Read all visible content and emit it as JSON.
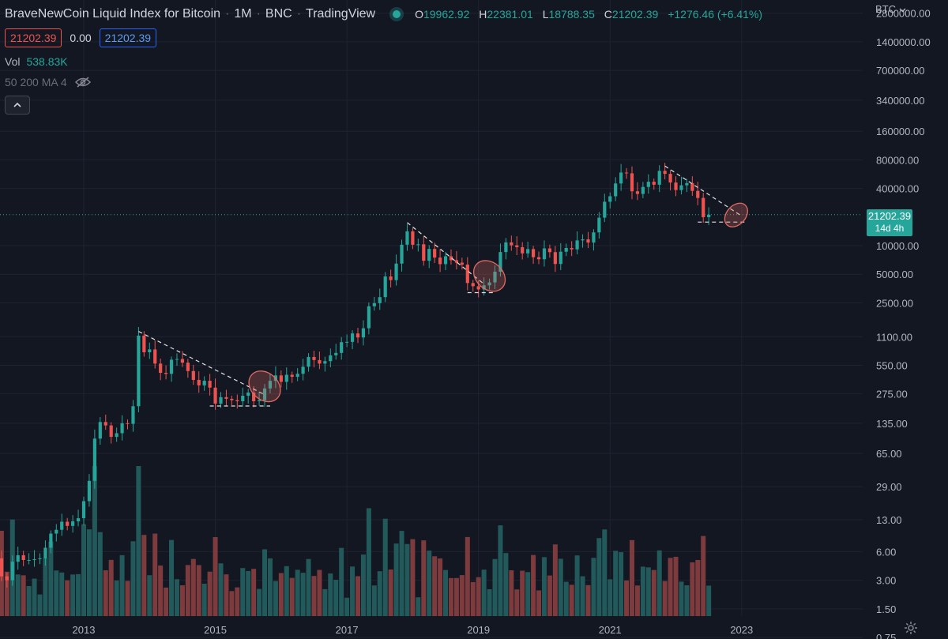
{
  "header": {
    "symbol_name": "BraveNewCoin Liquid Index for Bitcoin",
    "interval": "1M",
    "exchange": "BNC",
    "source": "TradingView",
    "ohlc": {
      "open_key": "O",
      "open": "19962.92",
      "high_key": "H",
      "high": "22381.01",
      "low_key": "L",
      "low": "18788.35",
      "close_key": "C",
      "close": "21202.39",
      "change": "+1276.46 (+6.41%)"
    }
  },
  "price_row": {
    "sell": "21202.39",
    "spread": "0.00",
    "buy": "21202.39"
  },
  "volume": {
    "label": "Vol",
    "value": "538.83K"
  },
  "indicator": {
    "label": "50 200 MA 4"
  },
  "currency": {
    "label": "BTC"
  },
  "last_price": {
    "value": "21202.39",
    "countdown": "14d 4h"
  },
  "colors": {
    "background": "#131722",
    "up": "#26a69a",
    "down": "#ef5350",
    "volume_up": "#225a5b",
    "volume_down": "#7d3b3d",
    "grid": "#1f2330",
    "annotation": "#e06a64",
    "trendline": "#e0e0e0"
  },
  "icons": {
    "live": "live-dot-icon",
    "hide": "eye-off-icon",
    "collapse": "chevron-up-icon",
    "settings": "gear-icon",
    "dropdown": "chevron-down-icon"
  },
  "chart_data": {
    "type": "candlestick",
    "title": "BraveNewCoin Liquid Index for Bitcoin",
    "interval": "1M",
    "yscale": "log",
    "ylim": [
      0.7,
      3200000
    ],
    "xlim": [
      "2011-08",
      "2024-11"
    ],
    "y_tick_labels": [
      "2800000.00",
      "1400000.00",
      "700000.00",
      "340000.00",
      "160000.00",
      "80000.00",
      "40000.00",
      "21202.39",
      "10000.00",
      "5000.00",
      "2500.00",
      "1100.00",
      "550.00",
      "275.00",
      "135.00",
      "65.00",
      "29.00",
      "13.00",
      "6.00",
      "3.00",
      "1.50",
      "0.75"
    ],
    "x_tick_labels": [
      "2013",
      "2015",
      "2017",
      "2019",
      "2021",
      "2023"
    ],
    "grid": true,
    "monthly_close": [
      [
        "2011-08",
        8.2
      ],
      [
        "2011-09",
        5.1
      ],
      [
        "2011-10",
        3.3
      ],
      [
        "2011-11",
        3.0
      ],
      [
        "2011-12",
        4.7
      ],
      [
        "2012-01",
        5.5
      ],
      [
        "2012-02",
        4.9
      ],
      [
        "2012-03",
        4.9
      ],
      [
        "2012-04",
        5.0
      ],
      [
        "2012-05",
        5.1
      ],
      [
        "2012-06",
        6.6
      ],
      [
        "2012-07",
        9.3
      ],
      [
        "2012-08",
        10.2
      ],
      [
        "2012-09",
        12.4
      ],
      [
        "2012-10",
        11.2
      ],
      [
        "2012-11",
        12.5
      ],
      [
        "2012-12",
        13.5
      ],
      [
        "2013-01",
        20.4
      ],
      [
        "2013-02",
        33.4
      ],
      [
        "2013-03",
        93.0
      ],
      [
        "2013-04",
        139
      ],
      [
        "2013-05",
        128
      ],
      [
        "2013-06",
        97
      ],
      [
        "2013-07",
        106
      ],
      [
        "2013-08",
        135
      ],
      [
        "2013-09",
        133
      ],
      [
        "2013-10",
        204
      ],
      [
        "2013-11",
        1130
      ],
      [
        "2013-12",
        754
      ],
      [
        "2014-01",
        808
      ],
      [
        "2014-02",
        573
      ],
      [
        "2014-03",
        458
      ],
      [
        "2014-04",
        447
      ],
      [
        "2014-05",
        630
      ],
      [
        "2014-06",
        640
      ],
      [
        "2014-07",
        586
      ],
      [
        "2014-08",
        478
      ],
      [
        "2014-09",
        386
      ],
      [
        "2014-10",
        338
      ],
      [
        "2014-11",
        378
      ],
      [
        "2014-12",
        320
      ],
      [
        "2015-01",
        217
      ],
      [
        "2015-02",
        254
      ],
      [
        "2015-03",
        244
      ],
      [
        "2015-04",
        236
      ],
      [
        "2015-05",
        230
      ],
      [
        "2015-06",
        263
      ],
      [
        "2015-07",
        284
      ],
      [
        "2015-08",
        230
      ],
      [
        "2015-09",
        236
      ],
      [
        "2015-10",
        314
      ],
      [
        "2015-11",
        377
      ],
      [
        "2015-12",
        430
      ],
      [
        "2016-01",
        368
      ],
      [
        "2016-02",
        437
      ],
      [
        "2016-03",
        416
      ],
      [
        "2016-04",
        448
      ],
      [
        "2016-05",
        531
      ],
      [
        "2016-06",
        673
      ],
      [
        "2016-07",
        624
      ],
      [
        "2016-08",
        573
      ],
      [
        "2016-09",
        608
      ],
      [
        "2016-10",
        700
      ],
      [
        "2016-11",
        742
      ],
      [
        "2016-12",
        963
      ],
      [
        "2017-01",
        970
      ],
      [
        "2017-02",
        1190
      ],
      [
        "2017-03",
        1080
      ],
      [
        "2017-04",
        1350
      ],
      [
        "2017-05",
        2300
      ],
      [
        "2017-06",
        2480
      ],
      [
        "2017-07",
        2870
      ],
      [
        "2017-08",
        4740
      ],
      [
        "2017-09",
        4340
      ],
      [
        "2017-10",
        6470
      ],
      [
        "2017-11",
        10230
      ],
      [
        "2017-12",
        14160
      ],
      [
        "2018-01",
        10220
      ],
      [
        "2018-02",
        10330
      ],
      [
        "2018-03",
        6930
      ],
      [
        "2018-04",
        9240
      ],
      [
        "2018-05",
        7490
      ],
      [
        "2018-06",
        6390
      ],
      [
        "2018-07",
        7730
      ],
      [
        "2018-08",
        7030
      ],
      [
        "2018-09",
        6620
      ],
      [
        "2018-10",
        6320
      ],
      [
        "2018-11",
        4040
      ],
      [
        "2018-12",
        3740
      ],
      [
        "2019-01",
        3460
      ],
      [
        "2019-02",
        3820
      ],
      [
        "2019-03",
        4100
      ],
      [
        "2019-04",
        5320
      ],
      [
        "2019-05",
        8560
      ],
      [
        "2019-06",
        10820
      ],
      [
        "2019-07",
        10080
      ],
      [
        "2019-08",
        9630
      ],
      [
        "2019-09",
        8290
      ],
      [
        "2019-10",
        9200
      ],
      [
        "2019-11",
        7560
      ],
      [
        "2019-12",
        7190
      ],
      [
        "2020-01",
        9350
      ],
      [
        "2020-02",
        8540
      ],
      [
        "2020-03",
        6410
      ],
      [
        "2020-04",
        8630
      ],
      [
        "2020-05",
        9450
      ],
      [
        "2020-06",
        9140
      ],
      [
        "2020-07",
        11350
      ],
      [
        "2020-08",
        11650
      ],
      [
        "2020-09",
        10780
      ],
      [
        "2020-10",
        13780
      ],
      [
        "2020-11",
        19700
      ],
      [
        "2020-12",
        28990
      ],
      [
        "2021-01",
        33110
      ],
      [
        "2021-02",
        45140
      ],
      [
        "2021-03",
        58790
      ],
      [
        "2021-04",
        57750
      ],
      [
        "2021-05",
        37330
      ],
      [
        "2021-06",
        35040
      ],
      [
        "2021-07",
        41460
      ],
      [
        "2021-08",
        47100
      ],
      [
        "2021-09",
        43790
      ],
      [
        "2021-10",
        61300
      ],
      [
        "2021-11",
        57000
      ],
      [
        "2021-12",
        46200
      ],
      [
        "2022-01",
        38480
      ],
      [
        "2022-02",
        43190
      ],
      [
        "2022-03",
        45540
      ],
      [
        "2022-04",
        37710
      ],
      [
        "2022-05",
        31790
      ],
      [
        "2022-06",
        19926
      ],
      [
        "2022-07",
        21202.39
      ]
    ],
    "annotations": [
      {
        "type": "trendline",
        "from": [
          "2013-11",
          1250
        ],
        "to": [
          "2015-10",
          270
        ]
      },
      {
        "type": "support",
        "from": [
          "2014-12",
          205
        ],
        "to": [
          "2015-11",
          205
        ]
      },
      {
        "type": "ellipse",
        "center": [
          "2015-10",
          330
        ]
      },
      {
        "type": "trendline",
        "from": [
          "2017-12",
          17500
        ],
        "to": [
          "2019-02",
          3950
        ]
      },
      {
        "type": "support",
        "from": [
          "2018-11",
          3200
        ],
        "to": [
          "2019-04",
          3200
        ]
      },
      {
        "type": "ellipse",
        "center": [
          "2019-03",
          4800
        ]
      },
      {
        "type": "trendline",
        "from": [
          "2021-11",
          69000
        ],
        "to": [
          "2023-01",
          20500
        ]
      },
      {
        "type": "support",
        "from": [
          "2022-05",
          17700
        ],
        "to": [
          "2023-02",
          17700
        ]
      },
      {
        "type": "ellipse",
        "center": [
          "2022-12",
          21000
        ]
      }
    ]
  }
}
